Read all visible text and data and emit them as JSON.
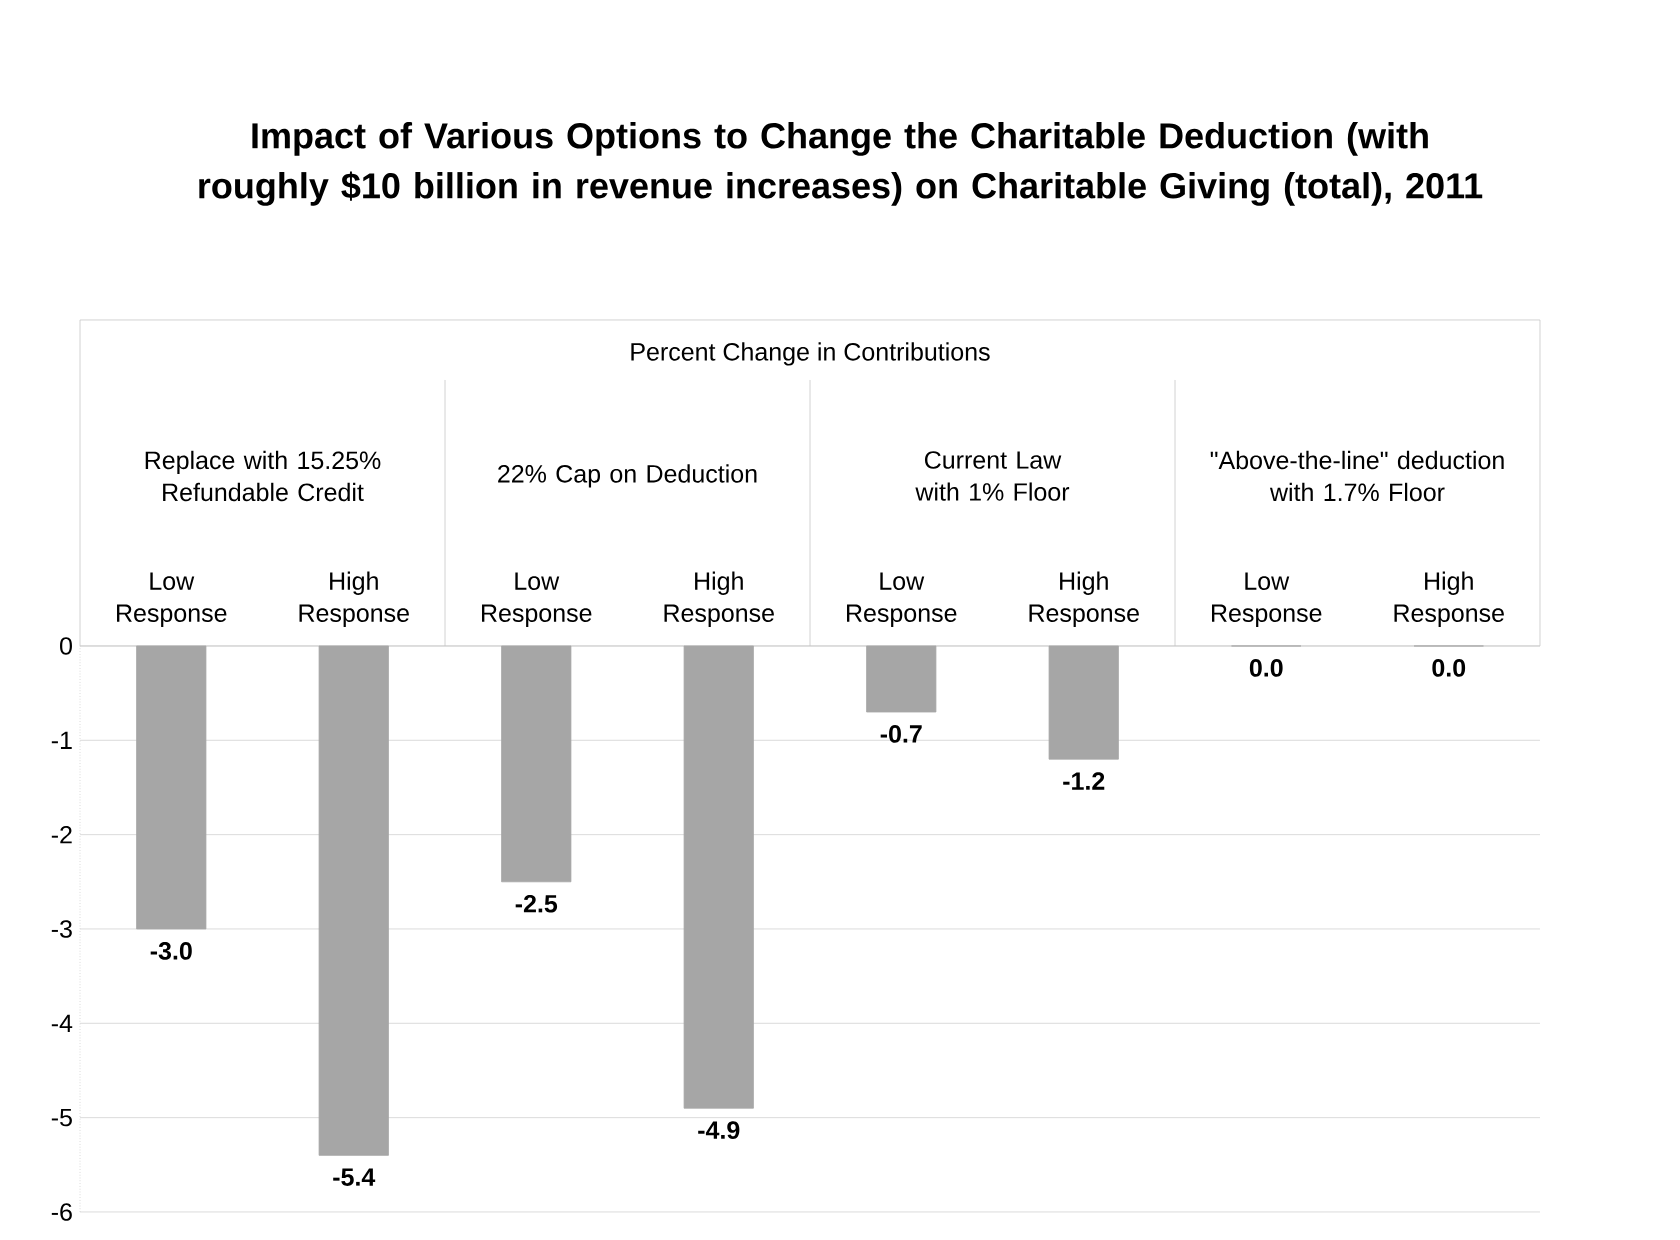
{
  "chart_data": {
    "type": "bar",
    "title": "Impact of Various Options to Change the Charitable Deduction (with roughly $10 billion in revenue increases) on Charitable Giving (total), 2011",
    "annotations": [
      "Percent Change in Contributions",
      "Replace with 15.25% Refundable Credit",
      "22% Cap on Deduction",
      "Current Law with 1% Floor",
      "\"Above-the-line\" deduction with 1.7% Floor"
    ],
    "categories": [
      "Low Response",
      "High Response",
      "Low Response",
      "High Response",
      "Low Response",
      "High Response",
      "Low Response",
      "High Response"
    ],
    "values": [
      -3.0,
      -5.4,
      -2.5,
      -4.9,
      -0.7,
      -1.2,
      0.0,
      0.0
    ],
    "value_labels": [
      "-3.0",
      "-5.4",
      "-2.5",
      "-4.9",
      "-0.7",
      "-1.2",
      "0.0",
      "0.0"
    ],
    "color": "#a6a6a6",
    "ylim": [
      -6,
      0
    ],
    "yticks": [
      0,
      -1,
      -2,
      -3,
      -4,
      -5,
      -6
    ],
    "grid": "y"
  }
}
